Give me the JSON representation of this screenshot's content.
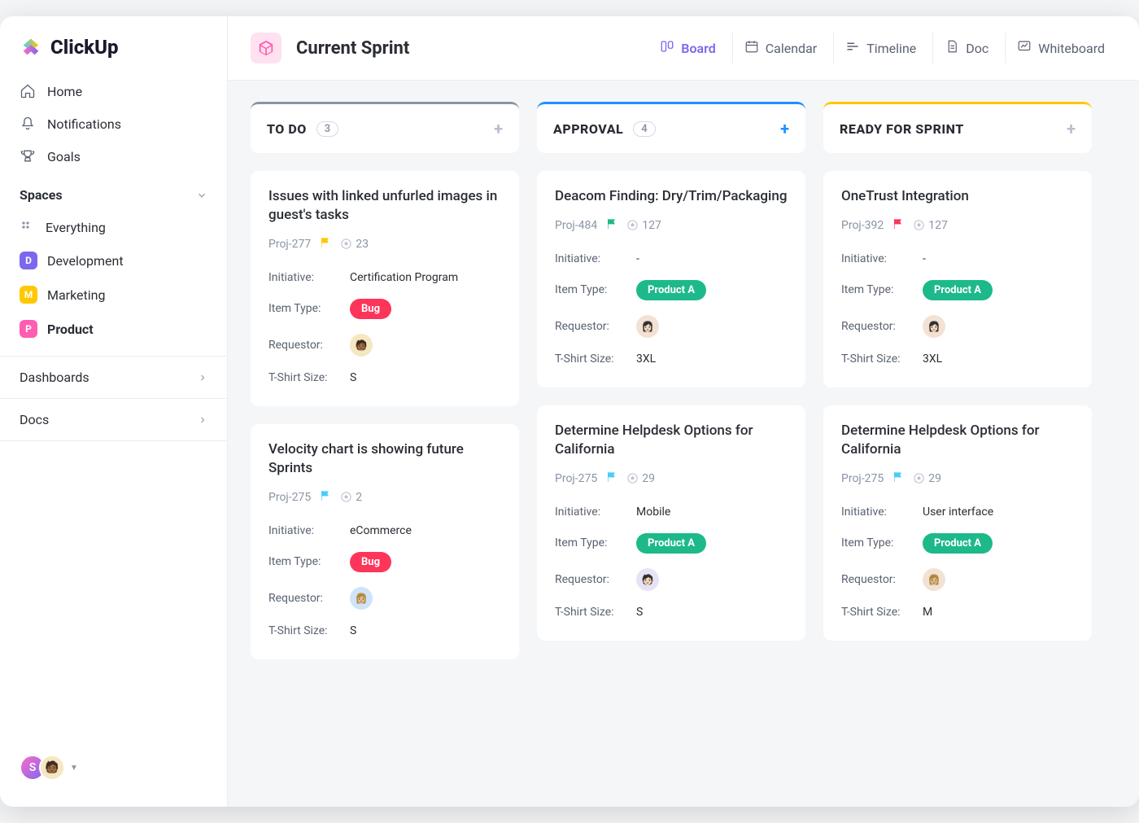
{
  "app": {
    "name": "ClickUp"
  },
  "sidebar": {
    "nav": [
      {
        "label": "Home",
        "icon": "home"
      },
      {
        "label": "Notifications",
        "icon": "bell"
      },
      {
        "label": "Goals",
        "icon": "trophy"
      }
    ],
    "spaces_title": "Spaces",
    "everything_label": "Everything",
    "spaces": [
      {
        "label": "Development",
        "letter": "D",
        "color": "#7b68ee",
        "active": false
      },
      {
        "label": "Marketing",
        "letter": "M",
        "color": "#ffc800",
        "active": false
      },
      {
        "label": "Product",
        "letter": "P",
        "color": "#ff5db2",
        "active": true
      }
    ],
    "links": [
      {
        "label": "Dashboards"
      },
      {
        "label": "Docs"
      }
    ],
    "footer_avatars": [
      {
        "letter": "S",
        "bg": "linear-gradient(135deg,#ff6bcb,#7b68ee)"
      },
      {
        "letter": "",
        "bg": "#f5e7c0",
        "emoji": "🧑🏾"
      }
    ]
  },
  "topbar": {
    "page_title": "Current Sprint",
    "views": [
      {
        "label": "Board",
        "icon": "board",
        "active": true,
        "color": "#7b68ee"
      },
      {
        "label": "Calendar",
        "icon": "calendar",
        "active": false
      },
      {
        "label": "Timeline",
        "icon": "timeline",
        "active": false
      },
      {
        "label": "Doc",
        "icon": "doc",
        "active": false
      },
      {
        "label": "Whiteboard",
        "icon": "whiteboard",
        "active": false
      }
    ]
  },
  "field_labels": {
    "initiative": "Initiative:",
    "item_type": "Item Type:",
    "requestor": "Requestor:",
    "tshirt": "T-Shirt Size:"
  },
  "pill_colors": {
    "Bug": "#fd355a",
    "Product A": "#1db98a"
  },
  "flag_colors": {
    "yellow": "#ffc800",
    "green": "#1db98a",
    "red": "#fd355a",
    "cyan": "#49ccf9"
  },
  "columns": [
    {
      "title": "TO DO",
      "count": 3,
      "color": "#8a94a6",
      "add_blue": false,
      "cards": [
        {
          "title": "Issues with linked unfurled images in guest's tasks",
          "proj": "Proj-277",
          "flag": "yellow",
          "stars": 23,
          "initiative": "Certification Program",
          "item_type": "Bug",
          "requestor_bg": "#f5e7c0",
          "requestor_emoji": "🧑🏾",
          "tshirt": "S"
        },
        {
          "title": "Velocity chart is showing future Sprints",
          "proj": "Proj-275",
          "flag": "cyan",
          "stars": 2,
          "initiative": "eCommerce",
          "item_type": "Bug",
          "requestor_bg": "#cfe3fa",
          "requestor_emoji": "👩🏼",
          "tshirt": "S"
        }
      ]
    },
    {
      "title": "APPROVAL",
      "count": 4,
      "color": "#1e90ff",
      "add_blue": true,
      "cards": [
        {
          "title": "Deacom Finding: Dry/Trim/Packaging",
          "proj": "Proj-484",
          "flag": "green",
          "stars": 127,
          "initiative": "-",
          "item_type": "Product A",
          "requestor_bg": "#f3e2d4",
          "requestor_emoji": "👩🏻",
          "tshirt": "3XL"
        },
        {
          "title": "Determine Helpdesk Options for California",
          "proj": "Proj-275",
          "flag": "cyan",
          "stars": 29,
          "initiative": "Mobile",
          "item_type": "Product A",
          "requestor_bg": "#e8e2f5",
          "requestor_emoji": "🧑🏻",
          "tshirt": "S"
        }
      ]
    },
    {
      "title": "READY FOR SPRINT",
      "count": null,
      "color": "#ffc800",
      "add_blue": false,
      "cards": [
        {
          "title": "OneTrust Integration",
          "proj": "Proj-392",
          "flag": "red",
          "stars": 127,
          "initiative": "-",
          "item_type": "Product A",
          "requestor_bg": "#f3e2d4",
          "requestor_emoji": "👩🏻",
          "tshirt": "3XL"
        },
        {
          "title": "Determine Helpdesk Options for California",
          "proj": "Proj-275",
          "flag": "cyan",
          "stars": 29,
          "initiative": "User interface",
          "item_type": "Product A",
          "requestor_bg": "#f3e2d4",
          "requestor_emoji": "👩🏼",
          "tshirt": "M"
        }
      ]
    }
  ]
}
